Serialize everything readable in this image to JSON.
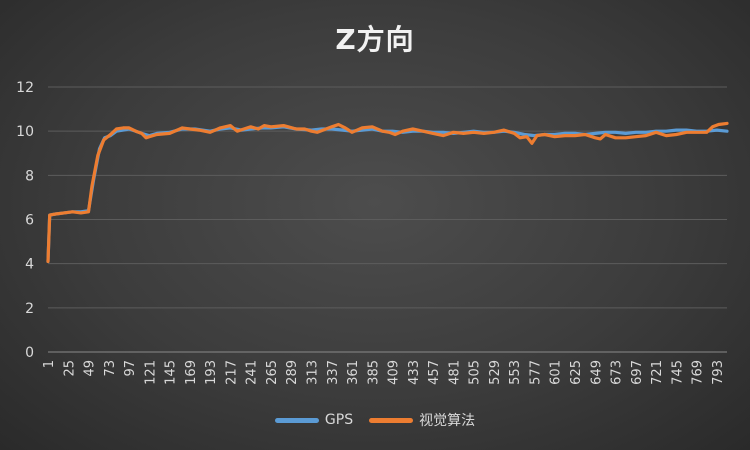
{
  "chart_data": {
    "type": "line",
    "title": "Z方向",
    "xlabel": "",
    "ylabel": "",
    "ylim": [
      0,
      12
    ],
    "yticks": [
      0,
      2,
      4,
      6,
      8,
      10,
      12
    ],
    "xlim": [
      1,
      805
    ],
    "xticks": [
      1,
      25,
      49,
      73,
      97,
      121,
      145,
      169,
      193,
      217,
      241,
      265,
      289,
      313,
      337,
      361,
      385,
      409,
      433,
      457,
      481,
      505,
      529,
      553,
      577,
      601,
      625,
      649,
      673,
      697,
      721,
      745,
      769,
      793
    ],
    "grid": "horizontal",
    "legend_position": "bottom",
    "series": [
      {
        "name": "GPS",
        "color": "#5b9bd5",
        "points": [
          [
            1,
            4.1
          ],
          [
            3,
            6.2
          ],
          [
            10,
            6.25
          ],
          [
            20,
            6.3
          ],
          [
            30,
            6.35
          ],
          [
            40,
            6.35
          ],
          [
            49,
            6.4
          ],
          [
            55,
            7.8
          ],
          [
            62,
            9.2
          ],
          [
            68,
            9.7
          ],
          [
            75,
            9.8
          ],
          [
            82,
            10.0
          ],
          [
            90,
            10.05
          ],
          [
            97,
            10.1
          ],
          [
            105,
            10.0
          ],
          [
            112,
            9.9
          ],
          [
            121,
            9.8
          ],
          [
            130,
            9.9
          ],
          [
            145,
            9.95
          ],
          [
            160,
            10.1
          ],
          [
            175,
            10.1
          ],
          [
            193,
            10.0
          ],
          [
            205,
            10.1
          ],
          [
            217,
            10.15
          ],
          [
            230,
            10.05
          ],
          [
            241,
            10.1
          ],
          [
            255,
            10.15
          ],
          [
            265,
            10.15
          ],
          [
            280,
            10.2
          ],
          [
            295,
            10.1
          ],
          [
            313,
            10.05
          ],
          [
            325,
            10.1
          ],
          [
            337,
            10.1
          ],
          [
            350,
            10.05
          ],
          [
            361,
            10.0
          ],
          [
            373,
            10.05
          ],
          [
            385,
            10.1
          ],
          [
            397,
            10.0
          ],
          [
            409,
            10.0
          ],
          [
            421,
            9.95
          ],
          [
            433,
            10.0
          ],
          [
            445,
            10.0
          ],
          [
            457,
            9.95
          ],
          [
            469,
            9.95
          ],
          [
            481,
            9.9
          ],
          [
            493,
            9.95
          ],
          [
            505,
            10.0
          ],
          [
            517,
            9.95
          ],
          [
            529,
            9.95
          ],
          [
            541,
            10.0
          ],
          [
            553,
            9.95
          ],
          [
            565,
            9.85
          ],
          [
            577,
            9.8
          ],
          [
            589,
            9.85
          ],
          [
            601,
            9.85
          ],
          [
            613,
            9.9
          ],
          [
            625,
            9.9
          ],
          [
            637,
            9.85
          ],
          [
            649,
            9.9
          ],
          [
            661,
            9.95
          ],
          [
            673,
            9.95
          ],
          [
            685,
            9.9
          ],
          [
            697,
            9.95
          ],
          [
            709,
            9.95
          ],
          [
            721,
            10.0
          ],
          [
            733,
            10.0
          ],
          [
            745,
            10.05
          ],
          [
            757,
            10.05
          ],
          [
            769,
            10.0
          ],
          [
            781,
            10.0
          ],
          [
            793,
            10.05
          ],
          [
            805,
            10.0
          ]
        ]
      },
      {
        "name": "视觉算法",
        "color": "#ed7d31",
        "points": [
          [
            1,
            4.1
          ],
          [
            3,
            6.2
          ],
          [
            10,
            6.25
          ],
          [
            20,
            6.3
          ],
          [
            30,
            6.35
          ],
          [
            40,
            6.3
          ],
          [
            49,
            6.35
          ],
          [
            53,
            7.5
          ],
          [
            60,
            8.9
          ],
          [
            67,
            9.6
          ],
          [
            75,
            9.85
          ],
          [
            82,
            10.1
          ],
          [
            90,
            10.15
          ],
          [
            97,
            10.15
          ],
          [
            105,
            10.0
          ],
          [
            112,
            9.9
          ],
          [
            117,
            9.7
          ],
          [
            121,
            9.75
          ],
          [
            130,
            9.85
          ],
          [
            145,
            9.9
          ],
          [
            160,
            10.15
          ],
          [
            169,
            10.1
          ],
          [
            180,
            10.05
          ],
          [
            193,
            9.95
          ],
          [
            205,
            10.15
          ],
          [
            217,
            10.25
          ],
          [
            225,
            10.0
          ],
          [
            233,
            10.1
          ],
          [
            241,
            10.2
          ],
          [
            250,
            10.1
          ],
          [
            257,
            10.25
          ],
          [
            265,
            10.2
          ],
          [
            280,
            10.25
          ],
          [
            295,
            10.1
          ],
          [
            305,
            10.1
          ],
          [
            313,
            10.0
          ],
          [
            320,
            9.95
          ],
          [
            337,
            10.2
          ],
          [
            345,
            10.3
          ],
          [
            353,
            10.15
          ],
          [
            361,
            9.95
          ],
          [
            373,
            10.15
          ],
          [
            385,
            10.2
          ],
          [
            397,
            10.0
          ],
          [
            405,
            9.95
          ],
          [
            412,
            9.85
          ],
          [
            421,
            10.0
          ],
          [
            433,
            10.1
          ],
          [
            445,
            10.0
          ],
          [
            457,
            9.9
          ],
          [
            469,
            9.8
          ],
          [
            481,
            9.95
          ],
          [
            493,
            9.9
          ],
          [
            505,
            9.95
          ],
          [
            517,
            9.9
          ],
          [
            529,
            9.95
          ],
          [
            541,
            10.05
          ],
          [
            553,
            9.9
          ],
          [
            560,
            9.7
          ],
          [
            568,
            9.75
          ],
          [
            574,
            9.45
          ],
          [
            580,
            9.8
          ],
          [
            589,
            9.85
          ],
          [
            601,
            9.75
          ],
          [
            613,
            9.8
          ],
          [
            625,
            9.8
          ],
          [
            637,
            9.85
          ],
          [
            649,
            9.7
          ],
          [
            655,
            9.65
          ],
          [
            661,
            9.85
          ],
          [
            673,
            9.7
          ],
          [
            685,
            9.7
          ],
          [
            697,
            9.75
          ],
          [
            709,
            9.8
          ],
          [
            721,
            9.95
          ],
          [
            733,
            9.8
          ],
          [
            745,
            9.85
          ],
          [
            757,
            9.95
          ],
          [
            769,
            9.95
          ],
          [
            781,
            9.95
          ],
          [
            788,
            10.2
          ],
          [
            795,
            10.3
          ],
          [
            805,
            10.35
          ]
        ]
      }
    ]
  }
}
